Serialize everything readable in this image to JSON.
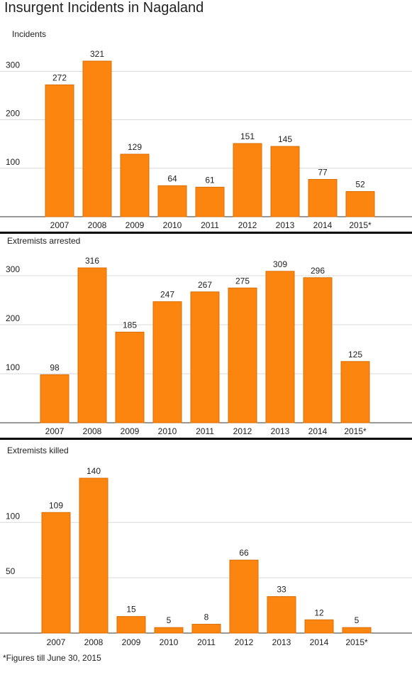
{
  "title": "Insurgent Incidents in Nagaland",
  "footnote": "*Figures till June 30, 2015",
  "colors": {
    "bar": "#fb850f",
    "bar_stroke": "#d86f06",
    "grid": "#d9d9d9",
    "divider": "#000000"
  },
  "chart_data": [
    {
      "type": "bar",
      "title": "Incidents",
      "categories": [
        "2007",
        "2008",
        "2009",
        "2010",
        "2011",
        "2012",
        "2013",
        "2014",
        "2015*"
      ],
      "values": [
        272,
        321,
        129,
        64,
        61,
        151,
        145,
        77,
        52
      ],
      "yticks": [
        100,
        200,
        300
      ],
      "ylim": [
        0,
        350
      ],
      "grid": true,
      "legend": "none"
    },
    {
      "type": "bar",
      "title": "Extremists arrested",
      "categories": [
        "2007",
        "2008",
        "2009",
        "2010",
        "2011",
        "2012",
        "2013",
        "2014",
        "2015*"
      ],
      "values": [
        98,
        316,
        185,
        247,
        267,
        275,
        309,
        296,
        125
      ],
      "yticks": [
        100,
        200,
        300
      ],
      "ylim": [
        0,
        340
      ],
      "grid": true,
      "legend": "none"
    },
    {
      "type": "bar",
      "title": "Extremists killed",
      "categories": [
        "2007",
        "2008",
        "2009",
        "2010",
        "2011",
        "2012",
        "2013",
        "2014",
        "2015*"
      ],
      "values": [
        109,
        140,
        15,
        5,
        8,
        66,
        33,
        12,
        5
      ],
      "yticks": [
        50,
        100
      ],
      "ylim": [
        0,
        150
      ],
      "grid": true,
      "legend": "none"
    }
  ]
}
